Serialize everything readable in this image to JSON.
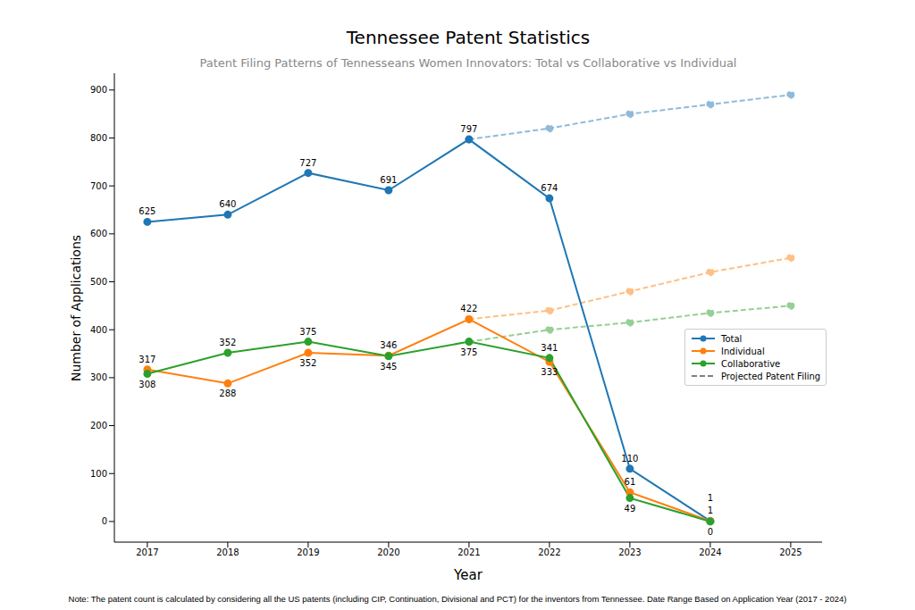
{
  "chart_data": {
    "type": "line",
    "title": "Tennessee Patent Statistics",
    "subtitle": "Patent Filing Patterns of Tennesseans Women Innovators: Total vs Collaborative vs Individual",
    "x_label": "Year",
    "y_label": "Number of Applications",
    "note": "Note: The patent count is calculated by considering all the US patents (including CIP, Continuation, Divisional and PCT) for the inventors from Tennessee. Date Range Based on Application Year (2017 - 2024)",
    "x": [
      2017,
      2018,
      2019,
      2020,
      2021,
      2022,
      2023,
      2024,
      2025
    ],
    "xlim": [
      2016.59,
      2025.39
    ],
    "xticks": [
      2017,
      2018,
      2019,
      2020,
      2021,
      2022,
      2023,
      2024,
      2025
    ],
    "ylim": [
      -43,
      935
    ],
    "yticks": [
      0,
      100,
      200,
      300,
      400,
      500,
      600,
      700,
      800,
      900
    ],
    "grid": false,
    "legend": "center right",
    "data_labels": true,
    "marker": "circle",
    "series": [
      {
        "name": "Total",
        "color": "#1f77b4",
        "line_style": "solid",
        "values": [
          625,
          640,
          727,
          691,
          797,
          674,
          110,
          1,
          null
        ]
      },
      {
        "name": "Individual",
        "color": "#ff7f0e",
        "line_style": "solid",
        "values": [
          317,
          288,
          352,
          346,
          422,
          333,
          61,
          1,
          null
        ]
      },
      {
        "name": "Collaborative",
        "color": "#2ca02c",
        "line_style": "solid",
        "values": [
          308,
          352,
          375,
          345,
          375,
          341,
          49,
          0,
          null
        ]
      }
    ],
    "projection": {
      "name": "Projected Patent Filing",
      "color": "#808080",
      "line_style": "dashed",
      "series": [
        {
          "color": "#8fbbd9",
          "values": [
            null,
            null,
            null,
            null,
            797,
            820,
            850,
            870,
            890
          ]
        },
        {
          "color": "#ffbf86",
          "values": [
            null,
            null,
            null,
            null,
            422,
            440,
            480,
            520,
            550
          ]
        },
        {
          "color": "#95cf95",
          "values": [
            null,
            null,
            null,
            null,
            375,
            400,
            415,
            435,
            450
          ]
        }
      ]
    }
  }
}
